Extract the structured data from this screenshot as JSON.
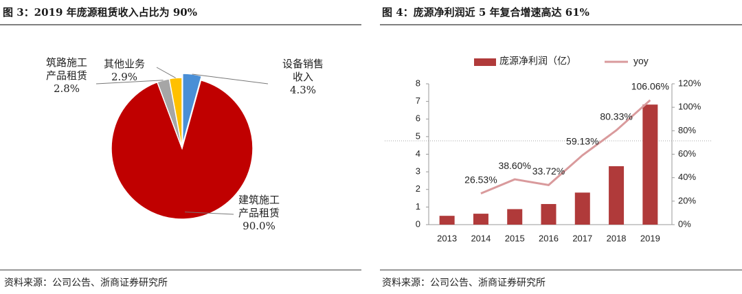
{
  "chart_data": [
    {
      "type": "pie",
      "title": "图 3：2019 年庞源租赁收入占比为 90%",
      "categories": [
        "设备销售收入",
        "建筑施工产品租赁",
        "筑路施工产品租赁",
        "其他业务"
      ],
      "values": [
        4.3,
        90.0,
        2.8,
        2.9
      ],
      "value_labels": [
        "4.3%",
        "90.0%",
        "2.8%",
        "2.9%"
      ],
      "colors": [
        "#4a8fd6",
        "#c00000",
        "#a6a6a6",
        "#ffc000"
      ]
    },
    {
      "type": "bar_line",
      "title": "图 4：庞源净利润近 5 年复合增速高达 61%",
      "categories": [
        "2013",
        "2014",
        "2015",
        "2016",
        "2017",
        "2018",
        "2019"
      ],
      "series": [
        {
          "name": "庞源净利润（亿）",
          "color": "#b03a3a",
          "type": "bar",
          "values": [
            0.5,
            0.62,
            0.88,
            1.17,
            1.82,
            3.32,
            6.82
          ]
        },
        {
          "name": "yoy",
          "color": "#d99a9c",
          "type": "line",
          "axis": "y2",
          "values": [
            null,
            26.53,
            38.6,
            33.72,
            59.13,
            80.33,
            106.06
          ],
          "value_labels": [
            null,
            "26.53%",
            "38.60%",
            "33.72%",
            "59.13%",
            "80.33%",
            "106.06%"
          ]
        }
      ],
      "ylim": [
        0,
        8
      ],
      "yticks": [
        0,
        1,
        2,
        3,
        4,
        5,
        6,
        7,
        8
      ],
      "y2lim": [
        0,
        120
      ],
      "y2ticks": [
        {
          "value": 0,
          "label": "0%"
        },
        {
          "value": 20,
          "label": "20%"
        },
        {
          "value": 40,
          "label": "40%"
        },
        {
          "value": 60,
          "label": "60%"
        },
        {
          "value": 80,
          "label": "80%"
        },
        {
          "value": 100,
          "label": "100%"
        },
        {
          "value": 120,
          "label": "120%"
        }
      ],
      "grid": false
    }
  ],
  "sources": [
    "资料来源：公司公告、浙商证券研究所",
    "资料来源：公司公告、浙商证券研究所"
  ]
}
